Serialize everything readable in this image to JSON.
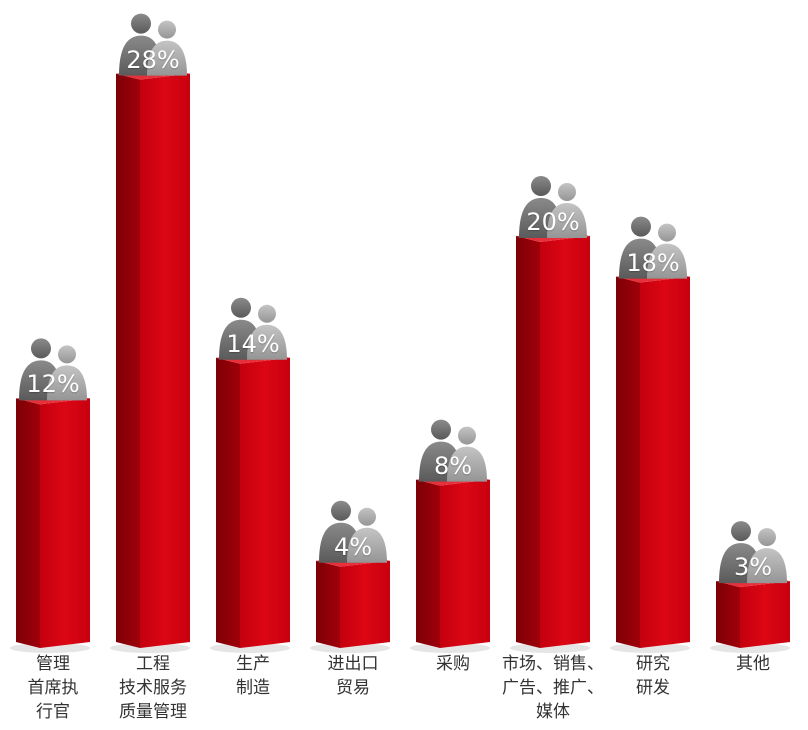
{
  "chart_data": {
    "type": "bar",
    "categories": [
      [
        "管理",
        "首席执",
        "行官"
      ],
      [
        "工程",
        "技术服务",
        "质量管理"
      ],
      [
        "生产",
        "制造"
      ],
      [
        "进出口",
        "贸易"
      ],
      [
        "采购"
      ],
      [
        "市场、销售、",
        "广告、推广、",
        "媒体"
      ],
      [
        "研究",
        "研发"
      ],
      [
        "其他"
      ]
    ],
    "values": [
      12,
      28,
      14,
      4,
      8,
      20,
      18,
      3
    ],
    "value_labels": [
      "12%",
      "28%",
      "14%",
      "4%",
      "8%",
      "20%",
      "18%",
      "3%"
    ],
    "unit": "%",
    "title": "",
    "xlabel": "",
    "ylabel": "",
    "ylim": [
      0,
      28
    ],
    "grid": false,
    "legend": "none",
    "colors": {
      "bar_front": "#d40010",
      "bar_side": "#8e0008",
      "bar_top": "#e8303a",
      "people_dark": "#6e6e6e",
      "people_light": "#a9a9a9"
    }
  }
}
